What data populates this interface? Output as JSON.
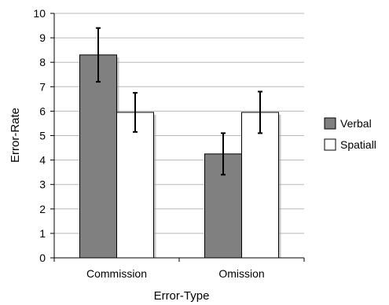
{
  "chart_data": {
    "type": "bar",
    "title": "",
    "xlabel": "Error-Type",
    "ylabel": "Error-Rate",
    "categories": [
      "Commission",
      "Omission"
    ],
    "ylim": [
      0,
      10
    ],
    "yticks": [
      "0",
      "1",
      "2",
      "3",
      "4",
      "5",
      "6",
      "7",
      "8",
      "9",
      "10"
    ],
    "grid": true,
    "legend_position": "right",
    "series": [
      {
        "name": "Verbal",
        "color": "#808080",
        "values": [
          8.3,
          4.25
        ],
        "error": [
          1.1,
          0.85
        ]
      },
      {
        "name": "Spatial",
        "legend_label": "Spatiall",
        "color": "#ffffff",
        "values": [
          5.95,
          5.95
        ],
        "error": [
          0.8,
          0.85
        ]
      }
    ]
  }
}
